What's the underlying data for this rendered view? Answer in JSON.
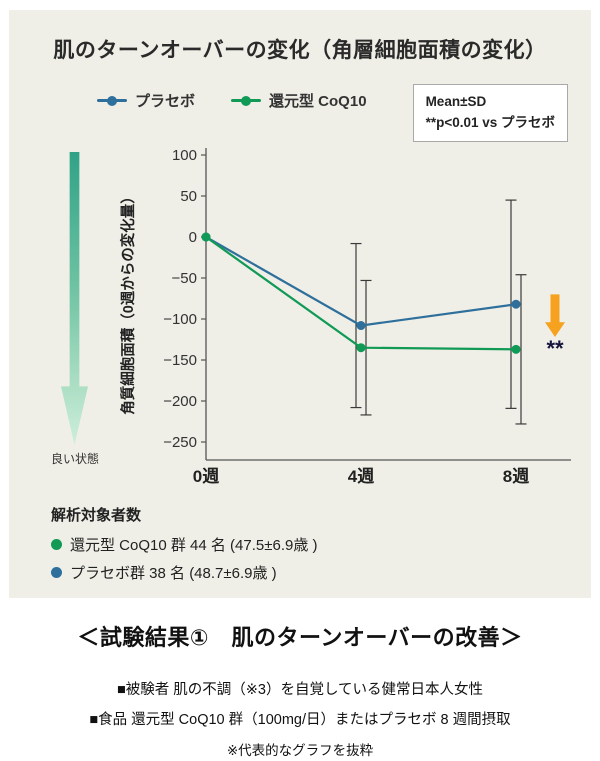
{
  "card": {
    "title": "肌のターンオーバーの変化（角層細胞面積の変化）",
    "legend": [
      {
        "label": "プラセボ",
        "color": "#2e6f9c"
      },
      {
        "label": "還元型 CoQ10",
        "color": "#119a56"
      }
    ],
    "note_box": {
      "line1": "Mean±SD",
      "line2": "**p<0.01 vs プラセボ"
    },
    "good_state_label": "良い状態",
    "stats": {
      "heading": "解析対象者数",
      "items": [
        {
          "color": "#119a56",
          "text": "還元型 CoQ10 群 44 名 (47.5±6.9歳 )"
        },
        {
          "color": "#2e6f9c",
          "text": "プラセボ群 38 名 (48.7±6.9歳 )"
        }
      ]
    }
  },
  "chart_data": {
    "type": "line",
    "title": "肌のターンオーバーの変化（角層細胞面積の変化）",
    "x_categories": [
      "0週",
      "4週",
      "8週"
    ],
    "ylabel": "角質細胞面積（0週からの変化量）",
    "ylim": [
      -250,
      100
    ],
    "yticks": [
      100,
      50,
      0,
      -50,
      -100,
      -150,
      -200,
      -250
    ],
    "grid": false,
    "legend_position": "top-left",
    "series": [
      {
        "name": "プラセボ",
        "color": "#2e6f9c",
        "values": [
          0,
          -108,
          -82
        ],
        "sd": [
          0,
          100,
          127
        ]
      },
      {
        "name": "還元型CoQ10",
        "color": "#119a56",
        "values": [
          0,
          -135,
          -137
        ],
        "sd": [
          0,
          82,
          91
        ]
      }
    ],
    "annotation": {
      "text": "**",
      "applies_to": "8週",
      "arrow_color": "#f6a21e"
    }
  },
  "footer": {
    "result_title": "＜試験結果①　肌のターンオーバーの改善＞",
    "line1": "■被験者 肌の不調（※3）を自覚している健常日本人女性",
    "line2": "■食品 還元型 CoQ10 群（100mg/日）またはプラセボ 8 週間摂取",
    "line3": "※代表的なグラフを抜粋"
  }
}
